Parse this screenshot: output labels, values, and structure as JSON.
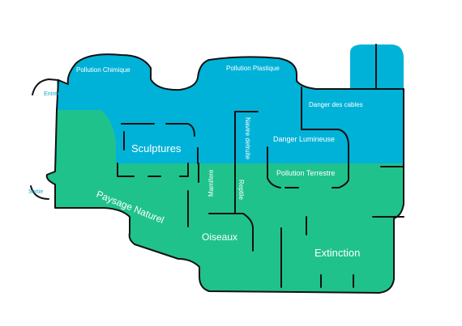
{
  "colors": {
    "blue_zone": "#00b2d8",
    "green_zone": "#20c28c",
    "walls": "#111111",
    "entry_text": "#11a9c9"
  },
  "rooms": {
    "pollution_chimique": "Pollution  Chimique",
    "pollution_plastique": "Pollution Plastique",
    "danger_cables": "Danger des cables",
    "danger_lumineuse": "Danger Lumineuse",
    "pollution_terrestre": "Pollution Terrestre",
    "sculptures": "Sculptures",
    "navire_detruite": "Navire detruite",
    "mamifere": "Mamifere",
    "reptile": "Reptile",
    "paysage_naturel": "Paysage Naturel",
    "oiseaux": "Oiseaux",
    "extinction": "Extinction"
  },
  "doors": {
    "entrer": "Entrer",
    "sortie": "Sortie"
  }
}
